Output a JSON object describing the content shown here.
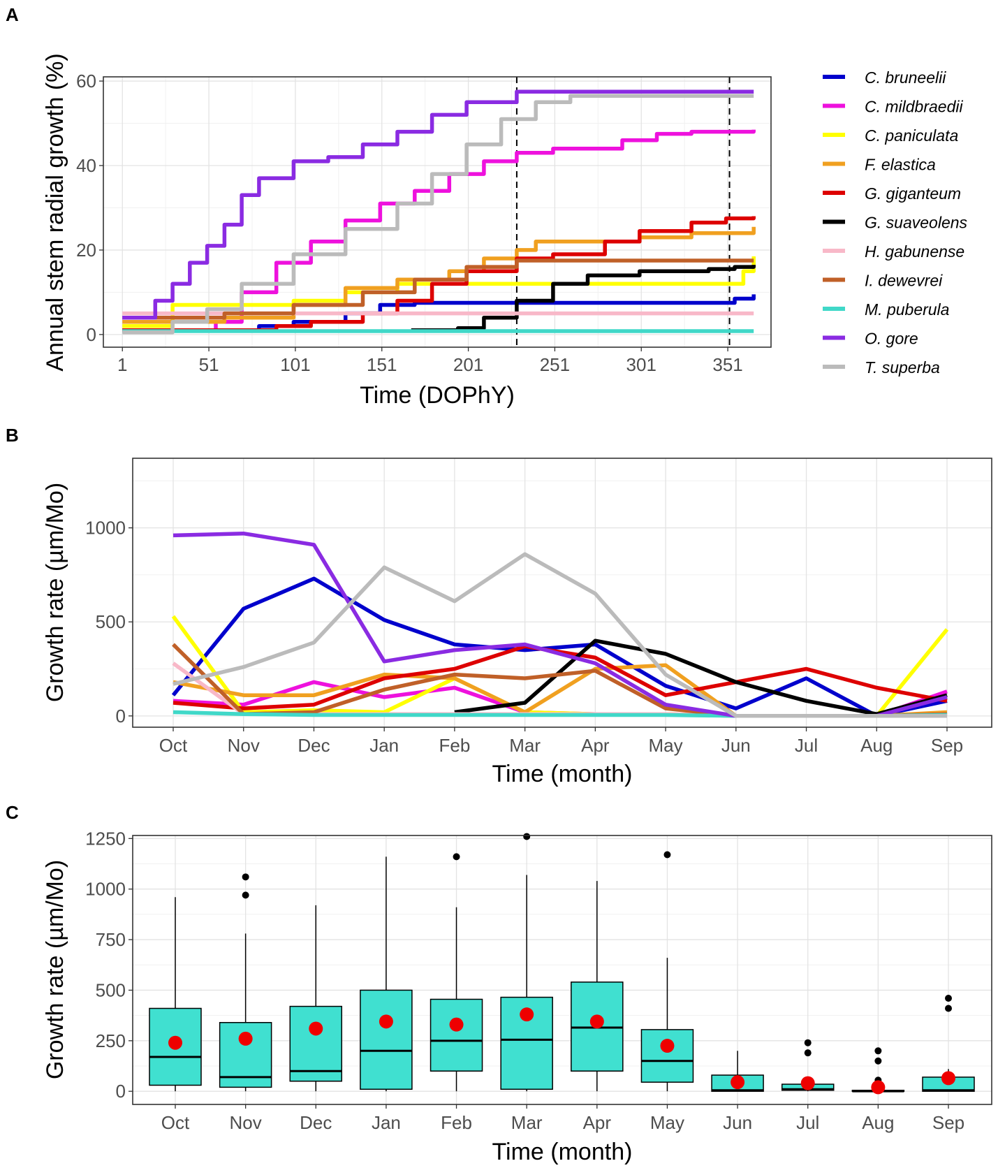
{
  "chart_data": [
    {
      "panel": "A",
      "type": "line",
      "xlabel": "Time (DOPhY)",
      "ylabel": "Annual stem radial growth (%)",
      "xlim": [
        -10,
        376
      ],
      "ylim": [
        -3,
        61
      ],
      "x_ticks": [
        1,
        51,
        101,
        151,
        201,
        251,
        301,
        351
      ],
      "y_ticks": [
        0,
        20,
        40,
        60
      ],
      "vlines": [
        229,
        352
      ],
      "series": [
        {
          "name": "C. bruneelii",
          "color": "#0000cc",
          "points": [
            [
              1,
              1
            ],
            [
              60,
              1
            ],
            [
              80,
              2
            ],
            [
              100,
              3
            ],
            [
              130,
              5
            ],
            [
              150,
              7
            ],
            [
              170,
              7.5
            ],
            [
              200,
              7.5
            ],
            [
              250,
              7.5
            ],
            [
              300,
              7.5
            ],
            [
              340,
              7.5
            ],
            [
              355,
              8.5
            ],
            [
              366,
              9.5
            ]
          ]
        },
        {
          "name": "C. mildbraedii",
          "color": "#ee11dd",
          "points": [
            [
              1,
              1
            ],
            [
              40,
              1
            ],
            [
              55,
              3
            ],
            [
              70,
              10
            ],
            [
              90,
              17
            ],
            [
              110,
              22
            ],
            [
              130,
              27
            ],
            [
              150,
              31
            ],
            [
              170,
              34
            ],
            [
              190,
              38
            ],
            [
              210,
              41
            ],
            [
              229,
              43
            ],
            [
              250,
              44
            ],
            [
              270,
              44
            ],
            [
              290,
              46
            ],
            [
              310,
              47.5
            ],
            [
              330,
              48
            ],
            [
              350,
              48
            ],
            [
              366,
              48.5
            ]
          ]
        },
        {
          "name": "C. paniculata",
          "color": "#ffff00",
          "points": [
            [
              1,
              2
            ],
            [
              25,
              2
            ],
            [
              30,
              7
            ],
            [
              60,
              7
            ],
            [
              100,
              8
            ],
            [
              130,
              10
            ],
            [
              160,
              12
            ],
            [
              250,
              12
            ],
            [
              300,
              12
            ],
            [
              355,
              12
            ],
            [
              360,
              15
            ],
            [
              366,
              18.5
            ]
          ]
        },
        {
          "name": "F. elastica",
          "color": "#f0a020",
          "points": [
            [
              1,
              3
            ],
            [
              60,
              4
            ],
            [
              100,
              7
            ],
            [
              130,
              11
            ],
            [
              160,
              13
            ],
            [
              190,
              15
            ],
            [
              210,
              18
            ],
            [
              229,
              20
            ],
            [
              240,
              22
            ],
            [
              270,
              22
            ],
            [
              300,
              23
            ],
            [
              330,
              24
            ],
            [
              366,
              25.5
            ]
          ]
        },
        {
          "name": "G. giganteum",
          "color": "#dd0000",
          "points": [
            [
              1,
              1
            ],
            [
              90,
              2
            ],
            [
              110,
              3
            ],
            [
              140,
              5
            ],
            [
              160,
              8
            ],
            [
              180,
              12
            ],
            [
              200,
              15
            ],
            [
              229,
              18
            ],
            [
              250,
              19
            ],
            [
              280,
              22
            ],
            [
              300,
              24.5
            ],
            [
              330,
              26.5
            ],
            [
              350,
              27.5
            ],
            [
              366,
              28
            ]
          ]
        },
        {
          "name": "G. suaveolens",
          "color": "#000000",
          "points": [
            [
              168,
              1
            ],
            [
              185,
              1
            ],
            [
              195,
              1.5
            ],
            [
              210,
              4
            ],
            [
              229,
              8
            ],
            [
              250,
              12
            ],
            [
              270,
              14
            ],
            [
              300,
              15
            ],
            [
              340,
              15.5
            ],
            [
              355,
              16
            ],
            [
              366,
              16.5
            ]
          ]
        },
        {
          "name": "H. gabunense",
          "color": "#f8b8c8",
          "points": [
            [
              1,
              5
            ],
            [
              366,
              5
            ]
          ]
        },
        {
          "name": "I. dewevrei",
          "color": "#c06028",
          "points": [
            [
              1,
              4
            ],
            [
              60,
              5
            ],
            [
              100,
              7
            ],
            [
              140,
              10
            ],
            [
              170,
              13
            ],
            [
              200,
              16
            ],
            [
              229,
              17.5
            ],
            [
              366,
              17.5
            ]
          ]
        },
        {
          "name": "M. puberula",
          "color": "#40d8c8",
          "points": [
            [
              1,
              0.8
            ],
            [
              366,
              0.8
            ]
          ]
        },
        {
          "name": "O. gore",
          "color": "#8a2be2",
          "points": [
            [
              1,
              4
            ],
            [
              20,
              8
            ],
            [
              30,
              12
            ],
            [
              40,
              17
            ],
            [
              50,
              21
            ],
            [
              60,
              26
            ],
            [
              70,
              33
            ],
            [
              80,
              37
            ],
            [
              100,
              41
            ],
            [
              120,
              42
            ],
            [
              140,
              45
            ],
            [
              160,
              48
            ],
            [
              180,
              52
            ],
            [
              200,
              55
            ],
            [
              229,
              57.5
            ],
            [
              300,
              57.5
            ],
            [
              366,
              57.5
            ]
          ]
        },
        {
          "name": "T. superba",
          "color": "#bbbbbb",
          "points": [
            [
              1,
              0.5
            ],
            [
              30,
              3
            ],
            [
              50,
              6
            ],
            [
              70,
              12
            ],
            [
              100,
              19
            ],
            [
              130,
              25
            ],
            [
              160,
              31
            ],
            [
              180,
              38
            ],
            [
              200,
              45
            ],
            [
              220,
              51
            ],
            [
              240,
              55
            ],
            [
              260,
              56.5
            ],
            [
              366,
              56.5
            ]
          ]
        }
      ]
    },
    {
      "panel": "B",
      "type": "line",
      "xlabel": "Time (month)",
      "ylabel": "Growth rate (µm/Mo)",
      "categories": [
        "Oct",
        "Nov",
        "Dec",
        "Jan",
        "Feb",
        "Mar",
        "Apr",
        "May",
        "Jun",
        "Jul",
        "Aug",
        "Sep"
      ],
      "ylim": [
        -60,
        1370
      ],
      "y_ticks": [
        0,
        500,
        1000
      ],
      "series": [
        {
          "name": "C. bruneelii",
          "color": "#0000cc",
          "values": [
            110,
            570,
            730,
            510,
            380,
            350,
            380,
            160,
            40,
            200,
            0,
            80
          ]
        },
        {
          "name": "C. mildbraedii",
          "color": "#ee11dd",
          "values": [
            80,
            60,
            180,
            100,
            150,
            20,
            10,
            10,
            0,
            0,
            0,
            130
          ]
        },
        {
          "name": "C. paniculata",
          "color": "#ffff00",
          "values": [
            530,
            20,
            30,
            20,
            200,
            20,
            10,
            10,
            0,
            0,
            0,
            460
          ]
        },
        {
          "name": "F. elastica",
          "color": "#f0a020",
          "values": [
            180,
            110,
            110,
            220,
            200,
            20,
            250,
            270,
            0,
            0,
            0,
            20
          ]
        },
        {
          "name": "G. giganteum",
          "color": "#dd0000",
          "values": [
            70,
            40,
            60,
            200,
            250,
            370,
            310,
            110,
            180,
            250,
            150,
            80
          ]
        },
        {
          "name": "G. suaveolens",
          "color": "#000000",
          "values": [
            null,
            null,
            null,
            null,
            20,
            70,
            400,
            330,
            180,
            80,
            10,
            110
          ]
        },
        {
          "name": "H. gabunense",
          "color": "#f8b8c8",
          "values": [
            280,
            10,
            10,
            10,
            10,
            10,
            10,
            10,
            0,
            0,
            0,
            10
          ]
        },
        {
          "name": "I. dewevrei",
          "color": "#c06028",
          "values": [
            380,
            10,
            20,
            140,
            220,
            200,
            240,
            40,
            0,
            0,
            0,
            10
          ]
        },
        {
          "name": "M. puberula",
          "color": "#40d8c8",
          "values": [
            20,
            10,
            5,
            5,
            5,
            5,
            5,
            5,
            0,
            0,
            0,
            5
          ]
        },
        {
          "name": "O. gore",
          "color": "#8a2be2",
          "values": [
            960,
            970,
            910,
            290,
            350,
            380,
            280,
            60,
            0,
            0,
            0,
            100
          ]
        },
        {
          "name": "T. superba",
          "color": "#bbbbbb",
          "values": [
            170,
            260,
            390,
            790,
            610,
            860,
            650,
            220,
            0,
            0,
            0,
            0
          ]
        }
      ]
    },
    {
      "panel": "C",
      "type": "box",
      "xlabel": "Time (month)",
      "ylabel": "Growth rate (µm/Mo)",
      "categories": [
        "Oct",
        "Nov",
        "Dec",
        "Jan",
        "Feb",
        "Mar",
        "Apr",
        "May",
        "Jun",
        "Jul",
        "Aug",
        "Sep"
      ],
      "ylim": [
        -65,
        1265
      ],
      "y_ticks": [
        0,
        250,
        500,
        750,
        1000,
        1250
      ],
      "y_tick_labels": [
        "0",
        "250",
        "500",
        "750",
        "1000",
        "1250"
      ],
      "box_color": "#40e0d0",
      "mean_color": "#ee0000",
      "boxes": [
        {
          "month": "Oct",
          "q1": 30,
          "median": 170,
          "q3": 410,
          "whisker_low": 0,
          "whisker_high": 960,
          "mean": 240,
          "outliers": []
        },
        {
          "month": "Nov",
          "q1": 20,
          "median": 70,
          "q3": 340,
          "whisker_low": 0,
          "whisker_high": 780,
          "mean": 260,
          "outliers": [
            970,
            1060
          ]
        },
        {
          "month": "Dec",
          "q1": 50,
          "median": 100,
          "q3": 420,
          "whisker_low": 0,
          "whisker_high": 920,
          "mean": 310,
          "outliers": []
        },
        {
          "month": "Jan",
          "q1": 10,
          "median": 200,
          "q3": 500,
          "whisker_low": 0,
          "whisker_high": 1160,
          "mean": 345,
          "outliers": []
        },
        {
          "month": "Feb",
          "q1": 100,
          "median": 250,
          "q3": 455,
          "whisker_low": 0,
          "whisker_high": 910,
          "mean": 330,
          "outliers": [
            1160
          ]
        },
        {
          "month": "Mar",
          "q1": 10,
          "median": 255,
          "q3": 465,
          "whisker_low": 0,
          "whisker_high": 1070,
          "mean": 380,
          "outliers": [
            1260
          ]
        },
        {
          "month": "Apr",
          "q1": 100,
          "median": 315,
          "q3": 540,
          "whisker_low": 0,
          "whisker_high": 1040,
          "mean": 345,
          "outliers": []
        },
        {
          "month": "May",
          "q1": 45,
          "median": 150,
          "q3": 305,
          "whisker_low": 0,
          "whisker_high": 660,
          "mean": 225,
          "outliers": [
            1170
          ]
        },
        {
          "month": "Jun",
          "q1": 0,
          "median": 5,
          "q3": 80,
          "whisker_low": 0,
          "whisker_high": 200,
          "mean": 45,
          "outliers": []
        },
        {
          "month": "Jul",
          "q1": 5,
          "median": 10,
          "q3": 35,
          "whisker_low": 0,
          "whisker_high": 70,
          "mean": 40,
          "outliers": [
            190,
            240
          ]
        },
        {
          "month": "Aug",
          "q1": 0,
          "median": 0,
          "q3": 5,
          "whisker_low": 0,
          "whisker_high": 5,
          "mean": 20,
          "outliers": [
            55,
            150,
            200
          ]
        },
        {
          "month": "Sep",
          "q1": 0,
          "median": 5,
          "q3": 70,
          "whisker_low": 0,
          "whisker_high": 110,
          "mean": 65,
          "outliers": [
            410,
            460
          ]
        }
      ]
    }
  ],
  "legend": {
    "entries": [
      {
        "name": "C. bruneelii",
        "color": "#0000cc"
      },
      {
        "name": "C. mildbraedii",
        "color": "#ee11dd"
      },
      {
        "name": "C. paniculata",
        "color": "#ffff00"
      },
      {
        "name": "F. elastica",
        "color": "#f0a020"
      },
      {
        "name": "G. giganteum",
        "color": "#dd0000"
      },
      {
        "name": "G. suaveolens",
        "color": "#000000"
      },
      {
        "name": "H. gabunense",
        "color": "#f8b8c8"
      },
      {
        "name": "I. dewevrei",
        "color": "#c06028"
      },
      {
        "name": "M. puberula",
        "color": "#40d8c8"
      },
      {
        "name": "O. gore",
        "color": "#8a2be2"
      },
      {
        "name": "T. superba",
        "color": "#bbbbbb"
      }
    ]
  },
  "panel_labels": [
    "A",
    "B",
    "C"
  ]
}
